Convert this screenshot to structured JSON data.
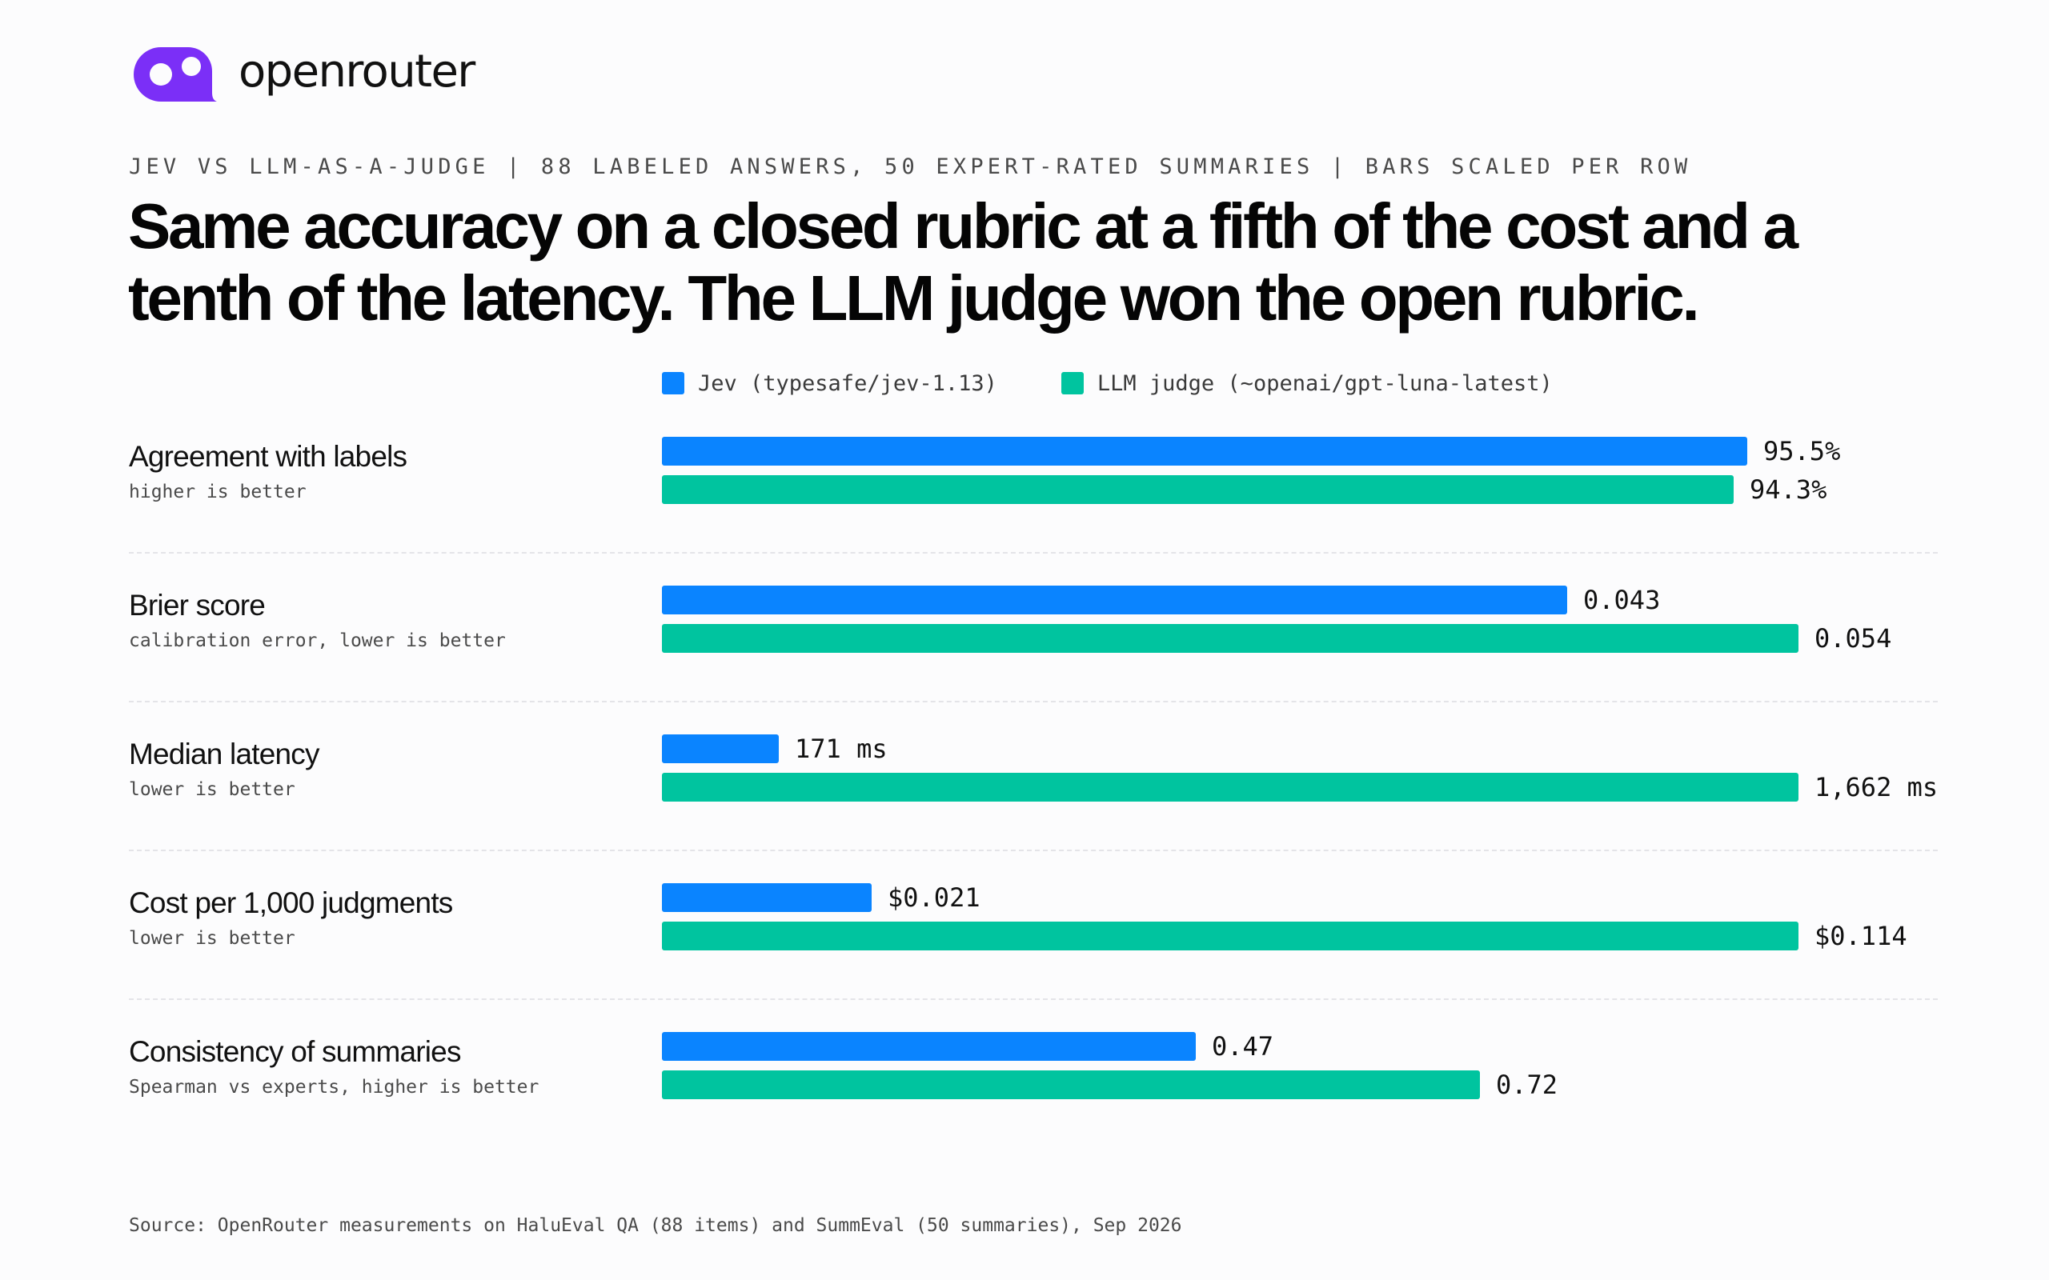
{
  "brand": {
    "name": "openrouter",
    "color": "#7b2ff7"
  },
  "kicker": "JEV VS LLM-AS-A-JUDGE | 88 LABELED ANSWERS, 50 EXPERT-RATED SUMMARIES | BARS SCALED PER ROW",
  "headline": {
    "line1": "Same accuracy on a closed rubric at a fifth of the cost and a",
    "line2": "tenth of the latency. The LLM judge won the open rubric."
  },
  "chart_data": {
    "type": "bar",
    "orientation": "horizontal",
    "scaling": "per-row",
    "legend_placement": "top",
    "grid": false,
    "series": [
      {
        "name": "Jev (typesafe/jev-1.13)",
        "color": "#0a84ff",
        "values": [
          95.5,
          0.043,
          171,
          0.021,
          0.47
        ]
      },
      {
        "name": "LLM judge (~openai/gpt-luna-latest)",
        "color": "#00c49f",
        "values": [
          94.3,
          0.054,
          1662,
          0.114,
          0.72
        ]
      }
    ],
    "categories": [
      "Agreement with labels",
      "Brier score",
      "Median latency",
      "Cost per 1,000 judgments",
      "Consistency of summaries"
    ],
    "rows": [
      {
        "label": "Agreement with labels",
        "sub": "higher is better",
        "scale_max": 100,
        "jev": {
          "value": 95.5,
          "label": "95.5%"
        },
        "llm": {
          "value": 94.3,
          "label": "94.3%"
        }
      },
      {
        "label": "Brier score",
        "sub": "calibration error, lower is better",
        "scale_max": 0.054,
        "jev": {
          "value": 0.043,
          "label": "0.043"
        },
        "llm": {
          "value": 0.054,
          "label": "0.054"
        }
      },
      {
        "label": "Median latency",
        "sub": "lower is better",
        "scale_max": 1662,
        "jev": {
          "value": 171,
          "label": "171 ms"
        },
        "llm": {
          "value": 1662,
          "label": "1,662 ms"
        }
      },
      {
        "label": "Cost per 1,000 judgments",
        "sub": "lower is better",
        "scale_max": 0.114,
        "jev": {
          "value": 0.021,
          "label": "$0.021"
        },
        "llm": {
          "value": 0.114,
          "label": "$0.114"
        }
      },
      {
        "label": "Consistency of summaries",
        "sub": "Spearman vs experts, higher is better",
        "scale_max": 1.0,
        "jev": {
          "value": 0.47,
          "label": "0.47"
        },
        "llm": {
          "value": 0.72,
          "label": "0.72"
        }
      }
    ]
  },
  "source": "Source: OpenRouter measurements on HaluEval QA (88 items) and SummEval (50 summaries), Sep 2026"
}
